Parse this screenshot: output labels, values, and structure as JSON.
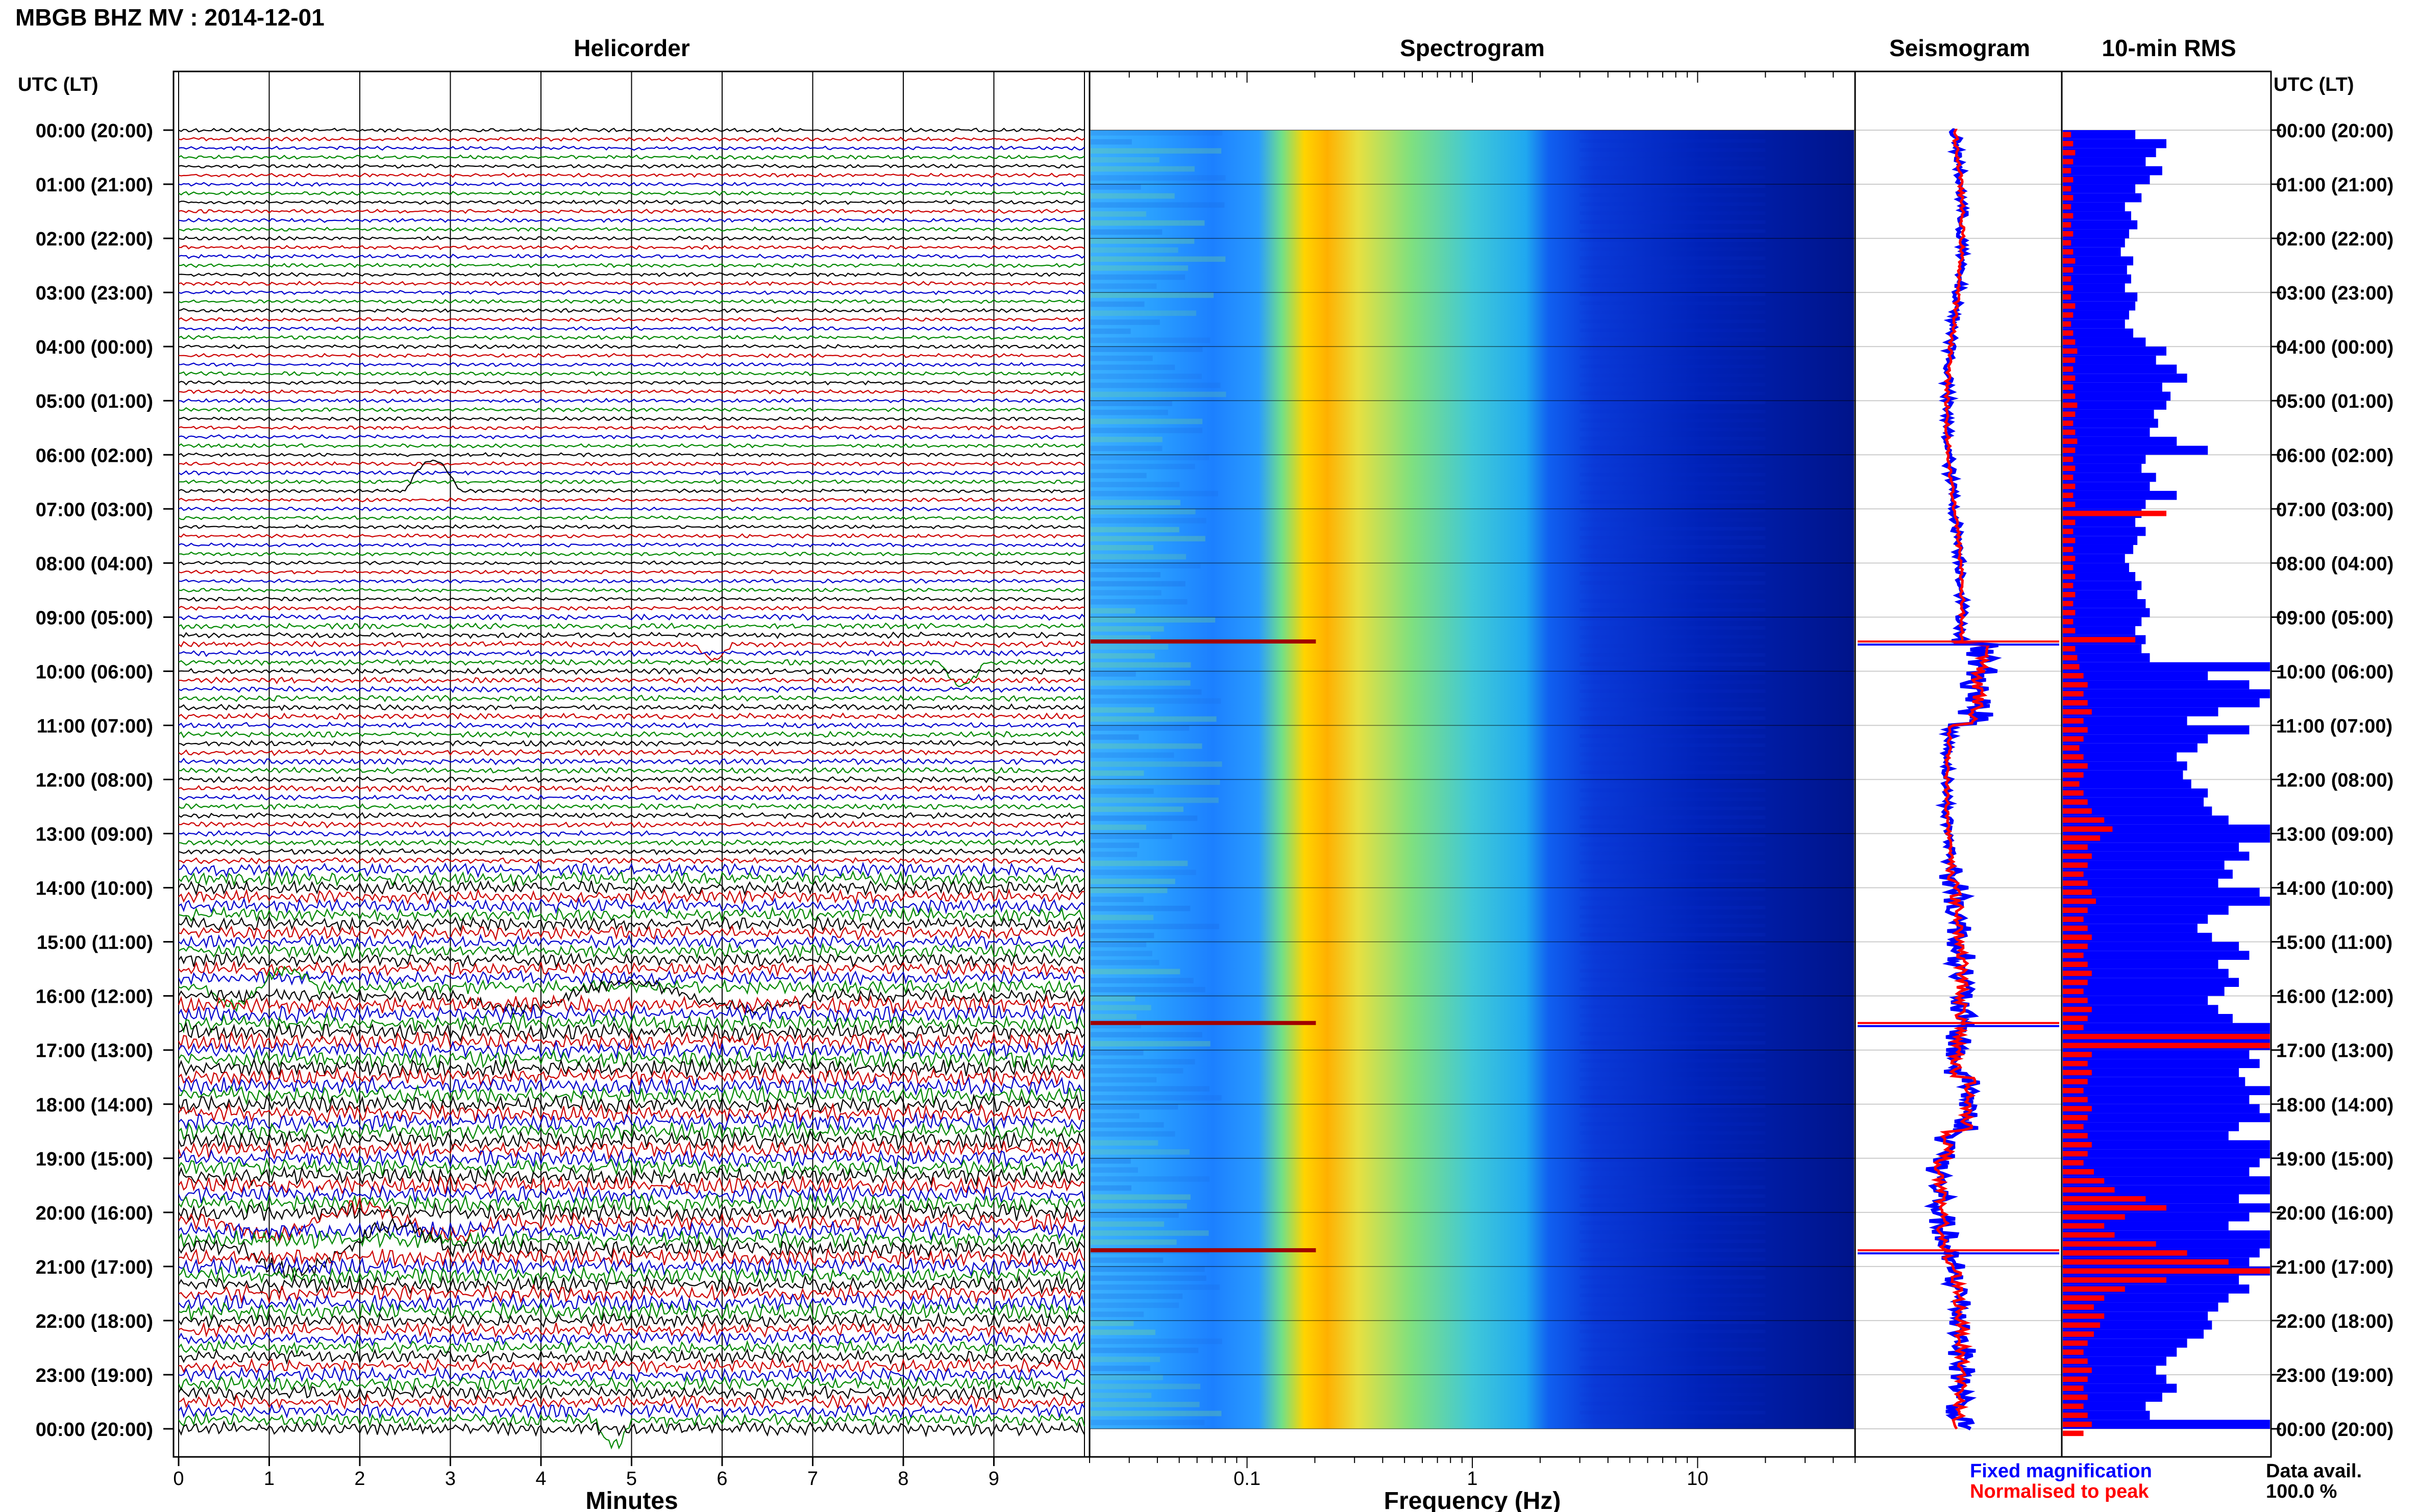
{
  "chart_data": {
    "type": "heatmap",
    "title": "MBGB BHZ MV : 2014-12-01",
    "panels": {
      "helicorder": "Helicorder",
      "spectrogram": "Spectrogram",
      "seismogram": "Seismogram",
      "rms": "10-min RMS"
    },
    "time_axis_label": "UTC (LT)",
    "time_ticks": [
      "00:00 (20:00)",
      "01:00 (21:00)",
      "02:00 (22:00)",
      "03:00 (23:00)",
      "04:00 (00:00)",
      "05:00 (01:00)",
      "06:00 (02:00)",
      "07:00 (03:00)",
      "08:00 (04:00)",
      "09:00 (05:00)",
      "10:00 (06:00)",
      "11:00 (07:00)",
      "12:00 (08:00)",
      "13:00 (09:00)",
      "14:00 (10:00)",
      "15:00 (11:00)",
      "16:00 (12:00)",
      "17:00 (13:00)",
      "18:00 (14:00)",
      "19:00 (15:00)",
      "20:00 (16:00)",
      "21:00 (17:00)",
      "22:00 (18:00)",
      "23:00 (19:00)",
      "00:00 (20:00)"
    ],
    "helicorder_xlabel": "Minutes",
    "helicorder_xticks": [
      "0",
      "1",
      "2",
      "3",
      "4",
      "5",
      "6",
      "7",
      "8",
      "9"
    ],
    "helicorder_xlim": [
      0,
      10
    ],
    "helicorder_colors": [
      "#000000",
      "#cc0000",
      "#0000cc",
      "#008800"
    ],
    "spectrogram_xlabel": "Frequency (Hz)",
    "spectrogram_xticks": [
      {
        "value": 0.1,
        "label": "0.1"
      },
      {
        "value": 1,
        "label": "1"
      },
      {
        "value": 10,
        "label": "10"
      }
    ],
    "spectrogram_xlim": [
      0.02,
      50
    ],
    "spectrogram_xscale": "log",
    "legend": [
      {
        "label": "Fixed magnification",
        "color": "#0000ff"
      },
      {
        "label": "Normalised to peak",
        "color": "#ff0000"
      }
    ],
    "data_avail_label": "Data avail.",
    "data_avail_value": "100.0 %",
    "spike_hours": [
      9.45,
      16.5,
      20.7
    ],
    "rms_blue": [
      0.35,
      0.5,
      0.45,
      0.4,
      0.48,
      0.42,
      0.35,
      0.38,
      0.3,
      0.33,
      0.36,
      0.32,
      0.3,
      0.28,
      0.34,
      0.31,
      0.33,
      0.3,
      0.36,
      0.35,
      0.32,
      0.3,
      0.34,
      0.4,
      0.5,
      0.45,
      0.55,
      0.6,
      0.48,
      0.52,
      0.5,
      0.44,
      0.46,
      0.42,
      0.55,
      0.7,
      0.4,
      0.38,
      0.45,
      0.42,
      0.55,
      0.4,
      0.38,
      0.35,
      0.4,
      0.36,
      0.34,
      0.3,
      0.32,
      0.35,
      0.38,
      0.36,
      0.4,
      0.42,
      0.38,
      0.35,
      0.4,
      0.38,
      0.42,
      1.0,
      0.7,
      0.9,
      1.0,
      0.95,
      0.75,
      0.6,
      0.9,
      0.7,
      0.65,
      0.55,
      0.6,
      0.58,
      0.62,
      0.7,
      0.68,
      0.72,
      0.8,
      1.0,
      1.0,
      0.85,
      0.9,
      0.78,
      0.82,
      0.75,
      0.95,
      1.0,
      0.8,
      0.7,
      0.65,
      0.72,
      0.85,
      0.9,
      0.75,
      0.8,
      0.85,
      0.78,
      0.7,
      0.75,
      0.82,
      1.0,
      1.0,
      1.0,
      0.9,
      0.95,
      0.85,
      0.88,
      1.0,
      0.9,
      0.95,
      1.0,
      0.85,
      0.8,
      1.0,
      1.0,
      0.95,
      0.9,
      1.0,
      1.0,
      0.85,
      1.0,
      0.9,
      0.8,
      1.0,
      1.0,
      0.95,
      0.9,
      1.0,
      0.85,
      0.9,
      0.8,
      0.75,
      0.7,
      0.72,
      0.68,
      0.6,
      0.55,
      0.5,
      0.45,
      0.5,
      0.55,
      0.48,
      0.4,
      0.42,
      1.0
    ],
    "rms_red": [
      0.04,
      0.05,
      0.06,
      0.05,
      0.04,
      0.05,
      0.04,
      0.05,
      0.04,
      0.05,
      0.04,
      0.05,
      0.04,
      0.05,
      0.06,
      0.05,
      0.04,
      0.05,
      0.04,
      0.06,
      0.05,
      0.04,
      0.05,
      0.06,
      0.07,
      0.06,
      0.05,
      0.06,
      0.05,
      0.06,
      0.07,
      0.06,
      0.05,
      0.06,
      0.07,
      0.06,
      0.05,
      0.06,
      0.05,
      0.06,
      0.05,
      0.06,
      0.5,
      0.06,
      0.05,
      0.06,
      0.05,
      0.06,
      0.05,
      0.06,
      0.05,
      0.06,
      0.05,
      0.06,
      0.05,
      0.06,
      0.35,
      0.06,
      0.07,
      0.08,
      0.1,
      0.12,
      0.1,
      0.12,
      0.14,
      0.1,
      0.12,
      0.1,
      0.08,
      0.1,
      0.12,
      0.1,
      0.08,
      0.1,
      0.12,
      0.14,
      0.2,
      0.24,
      0.18,
      0.12,
      0.14,
      0.12,
      0.1,
      0.12,
      0.14,
      0.16,
      0.12,
      0.1,
      0.12,
      0.14,
      0.12,
      0.1,
      0.12,
      0.14,
      0.12,
      0.1,
      0.12,
      0.14,
      0.12,
      0.1,
      1.0,
      1.0,
      0.14,
      0.12,
      0.14,
      0.12,
      0.1,
      0.12,
      0.14,
      0.12,
      0.1,
      0.12,
      0.14,
      0.12,
      0.1,
      0.15,
      0.2,
      0.25,
      0.4,
      0.5,
      0.3,
      0.2,
      0.25,
      0.45,
      0.6,
      0.8,
      1.0,
      0.5,
      0.3,
      0.2,
      0.15,
      0.2,
      0.18,
      0.15,
      0.12,
      0.1,
      0.12,
      0.14,
      0.12,
      0.1,
      0.12,
      0.1,
      0.12,
      0.14,
      0.1
    ]
  }
}
